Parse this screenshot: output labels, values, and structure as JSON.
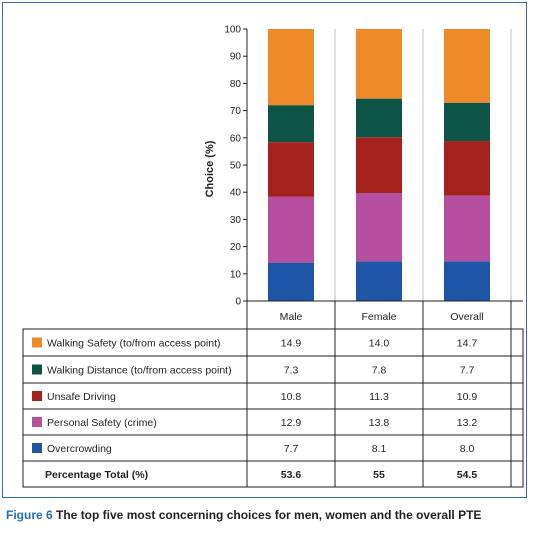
{
  "chart_data": {
    "type": "bar",
    "stacked": true,
    "ylabel": "Choice (%)",
    "ylim": [
      0,
      100
    ],
    "yticks": [
      0,
      10,
      20,
      30,
      40,
      50,
      60,
      70,
      80,
      90,
      100
    ],
    "categories": [
      "Male",
      "Female",
      "Overall"
    ],
    "series": [
      {
        "name": "Overcrowding",
        "color": "#1f55a6",
        "table_values": [
          "7.7",
          "8.1",
          "8.0"
        ],
        "heights": [
          14.1,
          14.6,
          14.6
        ]
      },
      {
        "name": "Personal Safety (crime)",
        "color": "#b64f9f",
        "table_values": [
          "12.9",
          "13.8",
          "13.2"
        ],
        "heights": [
          24.2,
          25.1,
          24.2
        ]
      },
      {
        "name": "Unsafe Driving",
        "color": "#a3231c",
        "table_values": [
          "10.8",
          "11.3",
          "10.9"
        ],
        "heights": [
          20.1,
          20.5,
          20.0
        ]
      },
      {
        "name": "Walking Distance (to/from access point)",
        "color": "#0d5446",
        "table_values": [
          "7.3",
          "7.8",
          "7.7"
        ],
        "heights": [
          13.6,
          14.2,
          14.1
        ]
      },
      {
        "name": "Walking Safety (to/from access point)",
        "color": "#ef8a2b",
        "table_values": [
          "14.9",
          "14.0",
          "14.7"
        ],
        "heights": [
          28.0,
          25.6,
          27.1
        ]
      }
    ],
    "total": {
      "label": "Percentage Total (%)",
      "values": [
        "53.6",
        "55",
        "54.5"
      ]
    }
  },
  "caption": {
    "figure": "Figure 6",
    "text": " The top five most concerning choices for men, women and the overall PTE"
  }
}
